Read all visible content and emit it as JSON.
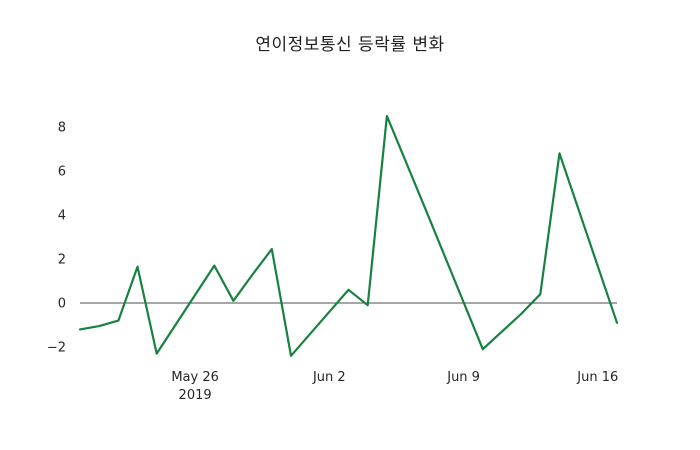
{
  "chart_data": {
    "type": "line",
    "title": "연이정보통신 등락률 변화",
    "xlabel": "",
    "ylabel": "",
    "legend": "none",
    "grid": false,
    "line_color": "#17823f",
    "zero_line_color": "#4d4d4d",
    "ylim": [
      -2.5,
      9.0
    ],
    "x_domain": [
      "2019-05-20",
      "2019-06-17"
    ],
    "series": [
      {
        "name": "등락률",
        "points": [
          {
            "date": "2019-05-20",
            "value": -1.2
          },
          {
            "date": "2019-05-21",
            "value": -1.05
          },
          {
            "date": "2019-05-22",
            "value": -0.8
          },
          {
            "date": "2019-05-23",
            "value": 1.65
          },
          {
            "date": "2019-05-24",
            "value": -2.3
          },
          {
            "date": "2019-05-27",
            "value": 1.7
          },
          {
            "date": "2019-05-28",
            "value": 0.1
          },
          {
            "date": "2019-05-29",
            "value": 1.3
          },
          {
            "date": "2019-05-30",
            "value": 2.45
          },
          {
            "date": "2019-05-31",
            "value": -2.4
          },
          {
            "date": "2019-06-03",
            "value": 0.6
          },
          {
            "date": "2019-06-04",
            "value": -0.1
          },
          {
            "date": "2019-06-05",
            "value": 8.5
          },
          {
            "date": "2019-06-07",
            "value": 4.3
          },
          {
            "date": "2019-06-10",
            "value": -2.1
          },
          {
            "date": "2019-06-11",
            "value": -1.3
          },
          {
            "date": "2019-06-12",
            "value": -0.5
          },
          {
            "date": "2019-06-13",
            "value": 0.4
          },
          {
            "date": "2019-06-14",
            "value": 6.8
          },
          {
            "date": "2019-06-17",
            "value": -0.9
          }
        ]
      }
    ],
    "yticks": [
      {
        "value": -2,
        "label": "−2"
      },
      {
        "value": 0,
        "label": "0"
      },
      {
        "value": 2,
        "label": "2"
      },
      {
        "value": 4,
        "label": "4"
      },
      {
        "value": 6,
        "label": "6"
      },
      {
        "value": 8,
        "label": "8"
      }
    ],
    "xticks": [
      {
        "date": "2019-05-26",
        "lines": [
          "May 26",
          "2019"
        ]
      },
      {
        "date": "2019-06-02",
        "lines": [
          "Jun 2"
        ]
      },
      {
        "date": "2019-06-09",
        "lines": [
          "Jun 9"
        ]
      },
      {
        "date": "2019-06-16",
        "lines": [
          "Jun 16"
        ]
      }
    ]
  }
}
